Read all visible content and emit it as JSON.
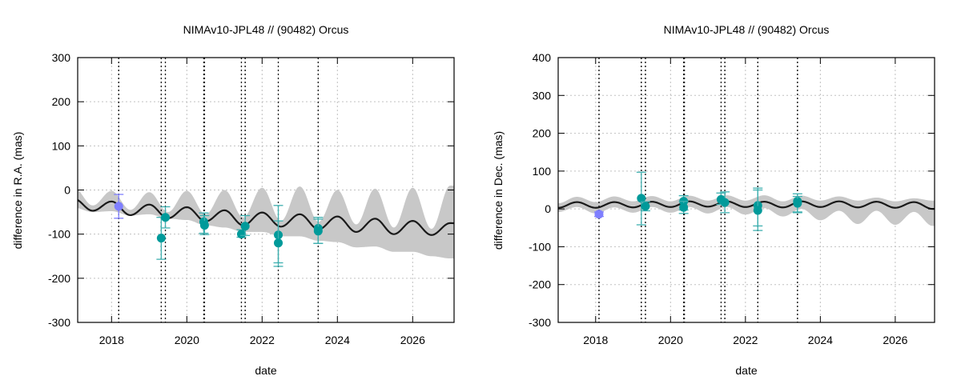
{
  "chart_data": [
    {
      "type": "line",
      "title": "NIMAv10-JPL48 // (90482) Orcus",
      "xlabel": "date",
      "ylabel": "difference in R.A. (mas)",
      "xlim": [
        2017.1,
        2027.1
      ],
      "ylim": [
        -300,
        300
      ],
      "xticks": [
        2018,
        2020,
        2022,
        2024,
        2026
      ],
      "yticks": [
        -300,
        -200,
        -100,
        0,
        100,
        200,
        300
      ],
      "grid": true,
      "observation_epochs": [
        2018.19,
        2019.32,
        2019.43,
        2020.45,
        2020.47,
        2021.45,
        2021.55,
        2022.43,
        2023.49
      ],
      "model": {
        "t": [
          2017.0,
          2017.5,
          2018.0,
          2018.5,
          2019.0,
          2019.5,
          2020.0,
          2020.5,
          2021.0,
          2021.5,
          2022.0,
          2022.5,
          2023.0,
          2023.5,
          2024.0,
          2024.5,
          2025.0,
          2025.5,
          2026.0,
          2026.5,
          2027.0,
          2027.5
        ],
        "center": [
          -20,
          -47,
          -26,
          -57,
          -33,
          -64,
          -39,
          -71,
          -46,
          -80,
          -51,
          -83,
          -55,
          -89,
          -60,
          -95,
          -65,
          -100,
          -70,
          -102,
          -75,
          -78
        ],
        "upper": [
          5,
          -35,
          -2,
          -45,
          -5,
          -50,
          -2,
          -55,
          0,
          -62,
          5,
          -70,
          8,
          -72,
          0,
          -78,
          3,
          -85,
          5,
          -88,
          10,
          5
        ],
        "lower": [
          -40,
          -50,
          -48,
          -58,
          -55,
          -65,
          -68,
          -80,
          -85,
          -95,
          -95,
          -105,
          -105,
          -115,
          -118,
          -130,
          -128,
          -140,
          -140,
          -150,
          -155,
          -158
        ]
      },
      "points": [
        {
          "t": 2018.19,
          "y": -37,
          "lo": -64,
          "hi": -10,
          "color": "#7f7fff"
        },
        {
          "t": 2019.32,
          "y": -109,
          "lo": -157,
          "hi": -62,
          "color": "#009a9a"
        },
        {
          "t": 2019.43,
          "y": -62,
          "lo": -86,
          "hi": -38,
          "color": "#009a9a"
        },
        {
          "t": 2020.45,
          "y": -72,
          "lo": -98,
          "hi": -52,
          "color": "#009a9a"
        },
        {
          "t": 2020.47,
          "y": -80,
          "lo": -101,
          "hi": -58,
          "color": "#009a9a"
        },
        {
          "t": 2021.45,
          "y": -100,
          "lo": -107,
          "hi": -90,
          "color": "#009a9a"
        },
        {
          "t": 2021.55,
          "y": -82,
          "lo": -103,
          "hi": -58,
          "color": "#009a9a"
        },
        {
          "t": 2022.43,
          "y": -102,
          "lo": -165,
          "hi": -35,
          "color": "#009a9a"
        },
        {
          "t": 2022.43,
          "y": -120,
          "lo": -173,
          "hi": -70,
          "color": "#009a9a"
        },
        {
          "t": 2023.49,
          "y": -87,
          "lo": -121,
          "hi": -62,
          "color": "#009a9a"
        },
        {
          "t": 2023.49,
          "y": -93,
          "lo": -121,
          "hi": -66,
          "color": "#009a9a"
        }
      ]
    },
    {
      "type": "line",
      "title": "NIMAv10-JPL48 // (90482) Orcus",
      "xlabel": "date",
      "ylabel": "difference in Dec. (mas)",
      "xlim": [
        2017.0,
        2027.05
      ],
      "ylim": [
        -300,
        400
      ],
      "xticks": [
        2018,
        2020,
        2022,
        2024,
        2026
      ],
      "yticks": [
        -300,
        -200,
        -100,
        0,
        100,
        200,
        300,
        400
      ],
      "grid": true,
      "observation_epochs": [
        2018.09,
        2019.22,
        2019.33,
        2020.35,
        2020.37,
        2021.35,
        2021.45,
        2022.33,
        2023.39
      ],
      "model": {
        "t": [
          2016.5,
          2017.0,
          2017.5,
          2018.0,
          2018.5,
          2019.0,
          2019.5,
          2020.0,
          2020.5,
          2021.0,
          2021.5,
          2022.0,
          2022.5,
          2023.0,
          2023.5,
          2024.0,
          2024.5,
          2025.0,
          2025.5,
          2026.0,
          2026.5,
          2027.0,
          2027.5
        ],
        "center": [
          18,
          3,
          18,
          3,
          18,
          4,
          19,
          5,
          20,
          6,
          20,
          5,
          19,
          4,
          20,
          5,
          20,
          4,
          19,
          3,
          18,
          0,
          15
        ],
        "upper": [
          30,
          15,
          32,
          18,
          33,
          20,
          34,
          20,
          35,
          22,
          36,
          22,
          36,
          20,
          35,
          22,
          33,
          22,
          30,
          20,
          28,
          22,
          28
        ],
        "lower": [
          5,
          -8,
          5,
          -12,
          4,
          -10,
          5,
          -10,
          5,
          -12,
          5,
          -15,
          2,
          -20,
          0,
          -30,
          -5,
          -40,
          -5,
          -42,
          -8,
          -45,
          -10
        ]
      },
      "points": [
        {
          "t": 2018.09,
          "y": -14,
          "lo": -20,
          "hi": -8,
          "color": "#7f7fff"
        },
        {
          "t": 2019.22,
          "y": 28,
          "lo": -42,
          "hi": 97,
          "color": "#009a9a"
        },
        {
          "t": 2019.33,
          "y": 7,
          "lo": -5,
          "hi": 19,
          "color": "#009a9a"
        },
        {
          "t": 2020.35,
          "y": 20,
          "lo": -3,
          "hi": 35,
          "color": "#009a9a"
        },
        {
          "t": 2020.35,
          "y": 4,
          "lo": -12,
          "hi": 20,
          "color": "#009a9a"
        },
        {
          "t": 2021.35,
          "y": 25,
          "lo": 12,
          "hi": 42,
          "color": "#009a9a"
        },
        {
          "t": 2021.45,
          "y": 17,
          "lo": -10,
          "hi": 45,
          "color": "#009a9a"
        },
        {
          "t": 2022.33,
          "y": 9,
          "lo": -45,
          "hi": 55,
          "color": "#009a9a"
        },
        {
          "t": 2022.33,
          "y": -4,
          "lo": -57,
          "hi": 50,
          "color": "#009a9a"
        },
        {
          "t": 2023.39,
          "y": 20,
          "lo": -10,
          "hi": 40,
          "color": "#009a9a"
        },
        {
          "t": 2023.39,
          "y": 15,
          "lo": -8,
          "hi": 33,
          "color": "#009a9a"
        }
      ]
    }
  ],
  "colors": {
    "band": "#c8c8c8",
    "model": "#1a1a1a",
    "grid": "#c0c0c0",
    "teal": "#009a9a",
    "blue": "#7f7fff",
    "teal_errorbar": "#3fb0b0"
  }
}
